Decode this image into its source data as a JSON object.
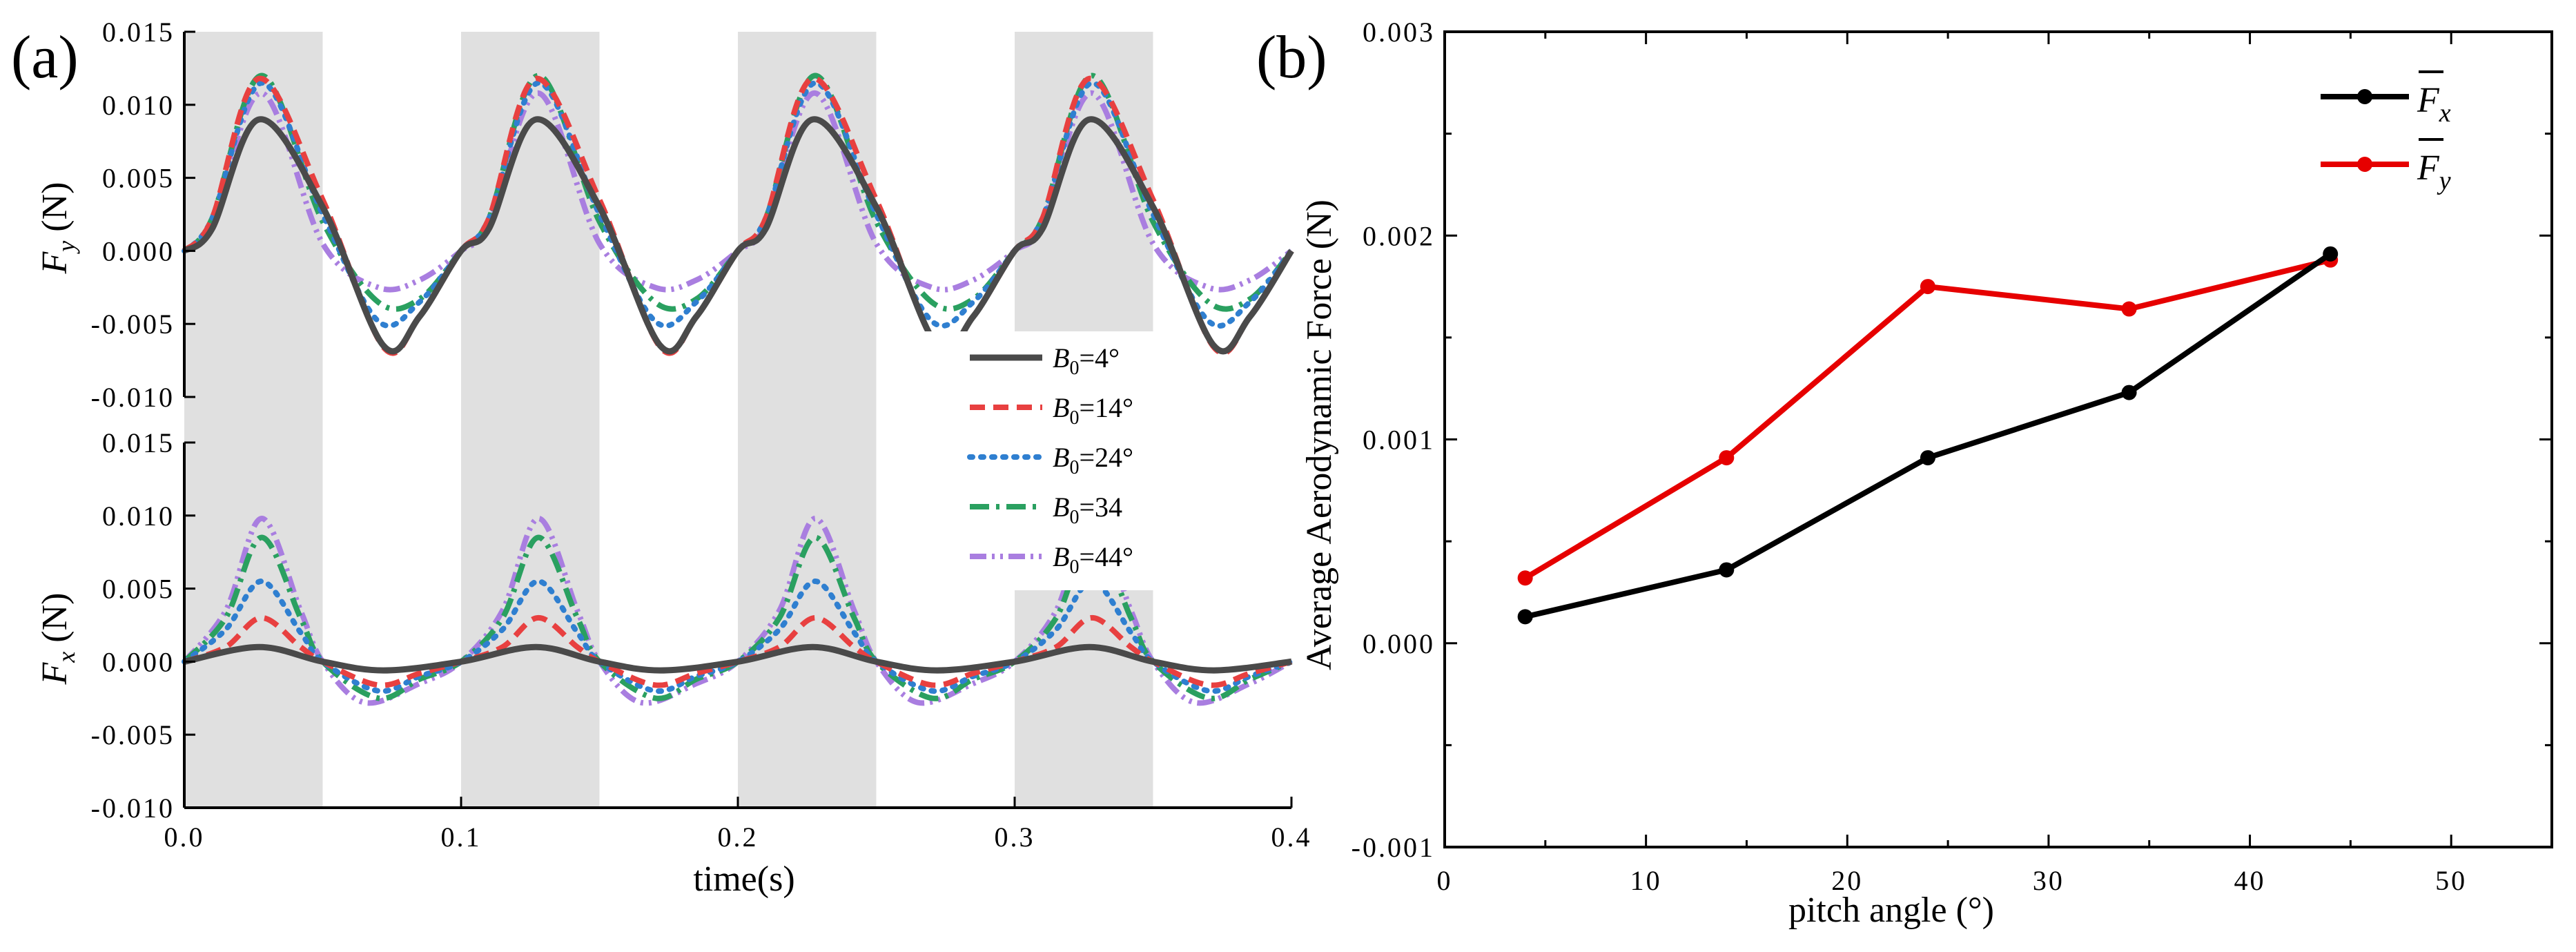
{
  "chart_data": [
    {
      "id": "a",
      "panel_label": "(a)",
      "type": "line",
      "xlabel": "time(s)",
      "xlim": [
        0,
        0.4
      ],
      "xticks": [
        "0.0",
        "0.1",
        "0.2",
        "0.3",
        "0.4"
      ],
      "xtick_values": [
        0,
        0.1,
        0.2,
        0.3,
        0.4
      ],
      "shaded_intervals": [
        [
          0,
          0.05
        ],
        [
          0.1,
          0.15
        ],
        [
          0.2,
          0.25
        ],
        [
          0.3,
          0.35
        ]
      ],
      "legend": {
        "placement": "right-middle",
        "entries": [
          {
            "prefix": "B",
            "sub": "0",
            "suffix": "=4°",
            "color": "#4a4a4a",
            "dash": "solid"
          },
          {
            "prefix": "B",
            "sub": "0",
            "suffix": "=14°",
            "color": "#e84040",
            "dash": "dashed"
          },
          {
            "prefix": "B",
            "sub": "0",
            "suffix": "=24°",
            "color": "#2f7fd0",
            "dash": "dotted"
          },
          {
            "prefix": "B",
            "sub": "0",
            "suffix": "=34",
            "color": "#2aa060",
            "dash": "dashdot"
          },
          {
            "prefix": "B",
            "sub": "0",
            "suffix": "=44°",
            "color": "#a97ee0",
            "dash": "dashdotdot"
          }
        ]
      },
      "subplots": [
        {
          "name": "Fy",
          "ylabel_main": "F",
          "ylabel_sub": "y",
          "ylabel_unit": " (N)",
          "ylim": [
            -0.01,
            0.015
          ],
          "yticks": [
            "0.015",
            "0.010",
            "0.005",
            "0.000",
            "-0.005",
            "-0.010"
          ],
          "ytick_values": [
            0.015,
            0.01,
            0.005,
            0,
            -0.005,
            -0.01
          ],
          "series": [
            {
              "name": "B0=4°",
              "pattern": {
                "t": [
                  0,
                  0.01,
                  0.027,
                  0.05,
                  0.072,
                  0.085,
                  0.1
                ],
                "v": [
                  0,
                  0.0015,
                  0.009,
                  0.003,
                  -0.0065,
                  -0.0045,
                  0
                ]
              }
            },
            {
              "name": "B0=14°",
              "pattern": {
                "t": [
                  0,
                  0.01,
                  0.027,
                  0.05,
                  0.072,
                  0.085,
                  0.1
                ],
                "v": [
                  0,
                  0.0022,
                  0.0118,
                  0.0035,
                  -0.0066,
                  -0.0045,
                  0
                ]
              }
            },
            {
              "name": "B0=24°",
              "pattern": {
                "t": [
                  0,
                  0.01,
                  0.028,
                  0.05,
                  0.07,
                  0.085,
                  0.1
                ],
                "v": [
                  0,
                  0.0022,
                  0.0115,
                  0.0025,
                  -0.0048,
                  -0.0035,
                  0
                ]
              }
            },
            {
              "name": "B0=34",
              "pattern": {
                "t": [
                  0,
                  0.01,
                  0.028,
                  0.05,
                  0.07,
                  0.085,
                  0.1
                ],
                "v": [
                  0,
                  0.0022,
                  0.012,
                  0.002,
                  -0.0035,
                  -0.0033,
                  0
                ]
              }
            },
            {
              "name": "B0=44°",
              "pattern": {
                "t": [
                  0,
                  0.01,
                  0.028,
                  0.05,
                  0.07,
                  0.085,
                  0.1
                ],
                "v": [
                  0,
                  0.0018,
                  0.0108,
                  0.0005,
                  -0.0025,
                  -0.002,
                  0
                ]
              }
            }
          ]
        },
        {
          "name": "Fx",
          "ylabel_main": "F",
          "ylabel_sub": "x",
          "ylabel_unit": " (N)",
          "ylim": [
            -0.01,
            0.015
          ],
          "yticks": [
            "0.015",
            "0.010",
            "0.005",
            "0.000",
            "-0.005",
            "-0.010"
          ],
          "ytick_values": [
            0.015,
            0.01,
            0.005,
            0,
            -0.005,
            -0.01
          ],
          "series": [
            {
              "name": "B0=4°",
              "pattern": {
                "t": [
                  0,
                  0.027,
                  0.05,
                  0.072,
                  0.1
                ],
                "v": [
                  0,
                  0.001,
                  0,
                  -0.0006,
                  0
                ]
              }
            },
            {
              "name": "B0=14°",
              "pattern": {
                "t": [
                  0,
                  0.015,
                  0.028,
                  0.042,
                  0.05,
                  0.07,
                  0.085,
                  0.1
                ],
                "v": [
                  0,
                  0.001,
                  0.003,
                  0.001,
                  0,
                  -0.0016,
                  -0.0008,
                  0
                ]
              }
            },
            {
              "name": "B0=24°",
              "pattern": {
                "t": [
                  0,
                  0.015,
                  0.028,
                  0.042,
                  0.05,
                  0.07,
                  0.085,
                  0.1
                ],
                "v": [
                  0,
                  0.0022,
                  0.0055,
                  0.002,
                  0,
                  -0.002,
                  -0.001,
                  0
                ]
              }
            },
            {
              "name": "B0=34",
              "pattern": {
                "t": [
                  0,
                  0.015,
                  0.028,
                  0.042,
                  0.05,
                  0.07,
                  0.085,
                  0.1
                ],
                "v": [
                  0,
                  0.003,
                  0.0085,
                  0.003,
                  0,
                  -0.0025,
                  -0.0012,
                  0
                ]
              }
            },
            {
              "name": "B0=44°",
              "pattern": {
                "t": [
                  0,
                  0.015,
                  0.028,
                  0.042,
                  0.05,
                  0.065,
                  0.085,
                  0.1
                ],
                "v": [
                  0,
                  0.0035,
                  0.0098,
                  0.0035,
                  0,
                  -0.0028,
                  -0.0015,
                  0
                ]
              }
            }
          ]
        }
      ]
    },
    {
      "id": "b",
      "panel_label": "(b)",
      "type": "line",
      "xlabel": "pitch angle (°)",
      "ylabel": "Average Aerodynamic Force (N)",
      "xlim": [
        0,
        55
      ],
      "ylim": [
        -0.001,
        0.003
      ],
      "xticks": [
        "0",
        "10",
        "20",
        "30",
        "40",
        "50"
      ],
      "xtick_values": [
        0,
        10,
        20,
        30,
        40,
        50
      ],
      "yticks": [
        "0.003",
        "0.002",
        "0.001",
        "0.000",
        "-0.001"
      ],
      "ytick_values": [
        0.003,
        0.002,
        0.001,
        0,
        -0.001
      ],
      "x": [
        4,
        14,
        24,
        34,
        44
      ],
      "legend": {
        "placement": "top-right",
        "entries": [
          {
            "prefix": "F",
            "sub": "x",
            "color": "#000000"
          },
          {
            "prefix": "F",
            "sub": "y",
            "color": "#e60000"
          }
        ]
      },
      "series": [
        {
          "name": "Fx",
          "color": "#000000",
          "values": [
            0.00013,
            0.00036,
            0.00091,
            0.00123,
            0.00191
          ]
        },
        {
          "name": "Fy",
          "color": "#e60000",
          "values": [
            0.00032,
            0.00091,
            0.00175,
            0.00164,
            0.00188
          ]
        }
      ]
    }
  ]
}
